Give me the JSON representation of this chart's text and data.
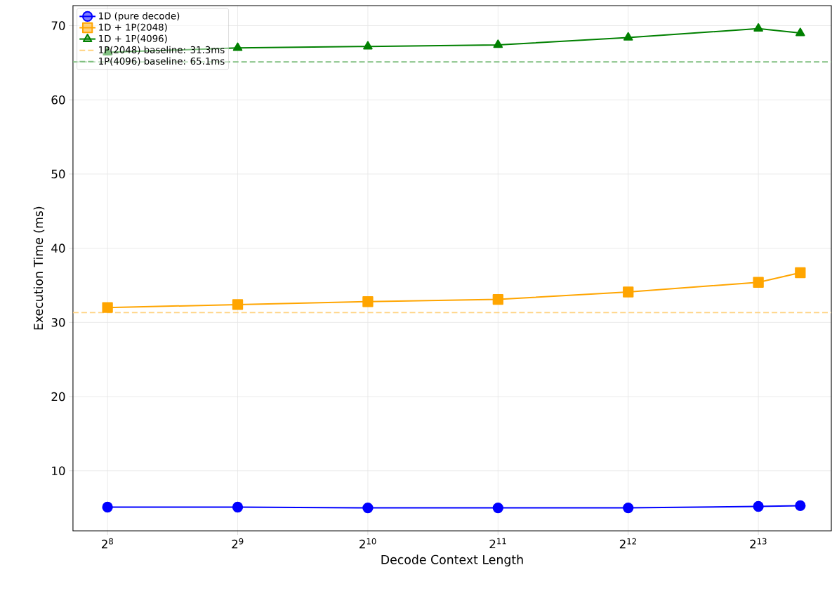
{
  "chart_data": {
    "type": "line",
    "xlabel": "Decode Context Length",
    "ylabel": "Execution Time (ms)",
    "x": [
      256,
      512,
      1024,
      2048,
      4096,
      8192,
      10240
    ],
    "series": [
      {
        "name": "1D (pure decode)",
        "color": "#0000ff",
        "marker": "circle",
        "values": [
          5.1,
          5.1,
          5.0,
          5.0,
          5.0,
          5.2,
          5.3
        ]
      },
      {
        "name": "1D + 1P(2048)",
        "color": "#ffa500",
        "marker": "square",
        "values": [
          32.0,
          32.4,
          32.8,
          33.1,
          34.1,
          35.4,
          36.7
        ]
      },
      {
        "name": "1D + 1P(4096)",
        "color": "#008000",
        "marker": "triangle",
        "values": [
          66.4,
          67.0,
          67.2,
          67.4,
          68.4,
          69.6,
          69.0
        ]
      }
    ],
    "ref_lines": [
      {
        "axis": "y",
        "value": 31.3,
        "label": "1P(2048) baseline: 31.3ms",
        "color": "#ffd27f",
        "line_style": "dashed"
      },
      {
        "axis": "y",
        "value": 65.1,
        "label": "1P(4096) baseline: 65.1ms",
        "color": "#7fbf7f",
        "line_style": "dashed"
      }
    ],
    "log": "x",
    "xlim": [
      213,
      12080
    ],
    "ylim": [
      1.9,
      72.7
    ],
    "xticks": [
      {
        "value": 256,
        "label": "2$^{8}$"
      },
      {
        "value": 512,
        "label": "2$^{9}$"
      },
      {
        "value": 1024,
        "label": "2$^{10}$"
      },
      {
        "value": 2048,
        "label": "2$^{11}$"
      },
      {
        "value": 4096,
        "label": "2$^{12}$"
      },
      {
        "value": 8192,
        "label": "2$^{13}$"
      }
    ],
    "yticks": [
      10,
      20,
      30,
      40,
      50,
      60,
      70
    ],
    "grid": true,
    "legend": "top left",
    "line_style": "solid"
  }
}
